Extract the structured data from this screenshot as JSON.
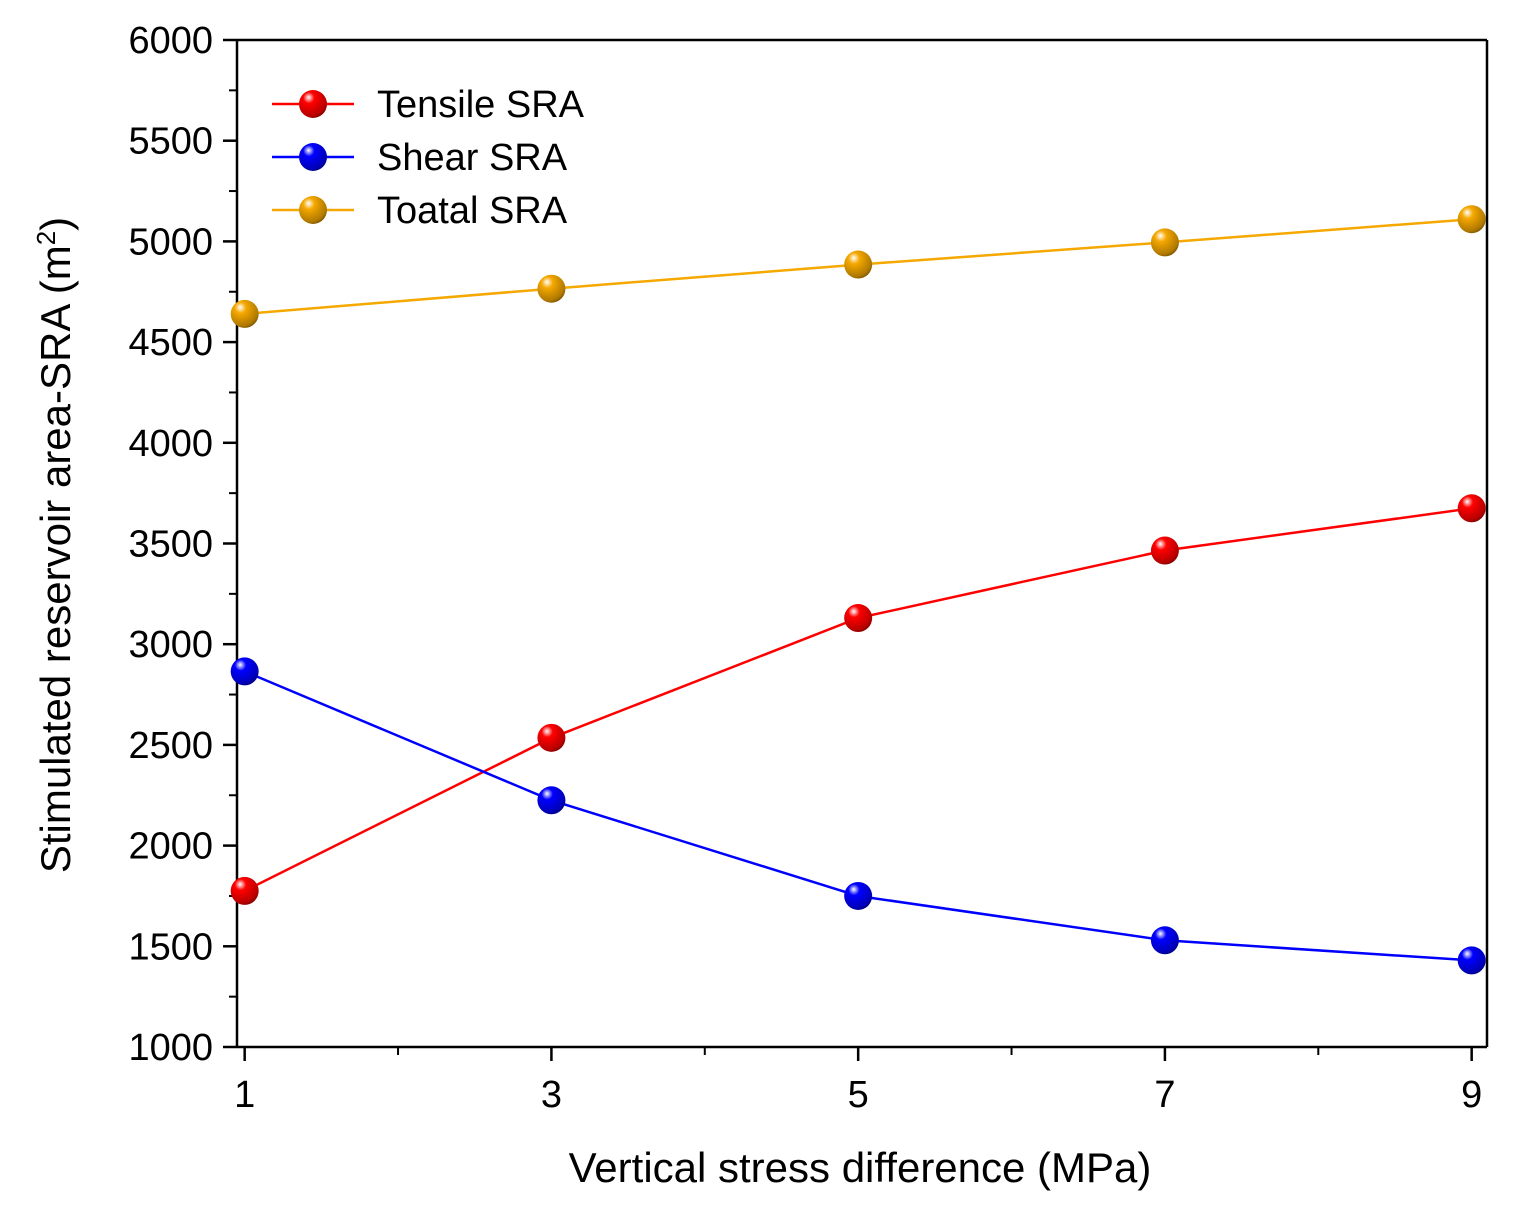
{
  "chart_data": {
    "type": "line",
    "title": "",
    "xlabel": "Vertical stress difference (MPa)",
    "ylabel_main": "Stimulated reservoir area-SRA (m",
    "ylabel_sup": "2",
    "ylabel_close": ")",
    "xlim": [
      0.95,
      9.1
    ],
    "ylim": [
      1000,
      6000
    ],
    "x_ticks": [
      1,
      3,
      5,
      7,
      9
    ],
    "x_tick_labels": [
      "1",
      "3",
      "5",
      "7",
      "9"
    ],
    "y_ticks": [
      1000,
      1500,
      2000,
      2500,
      3000,
      3500,
      4000,
      4500,
      5000,
      5500,
      6000
    ],
    "y_tick_labels": [
      "1000",
      "1500",
      "2000",
      "2500",
      "3000",
      "3500",
      "4000",
      "4500",
      "5000",
      "5500",
      "6000"
    ],
    "x_minor_ticks": [
      2,
      4,
      6,
      8
    ],
    "y_minor_ticks": [
      1250,
      1750,
      2250,
      2750,
      3250,
      3750,
      4250,
      4750,
      5250,
      5750
    ],
    "grid": false,
    "legend_position": "top-left",
    "x": [
      1,
      3,
      5,
      7,
      9
    ],
    "series": [
      {
        "name": "Tensile SRA",
        "color": "#ff0000",
        "values": [
          1775,
          2535,
          3130,
          3465,
          3675
        ]
      },
      {
        "name": "Shear SRA",
        "color": "#0000ff",
        "values": [
          2865,
          2225,
          1750,
          1530,
          1430
        ]
      },
      {
        "name": "Toatal SRA",
        "color": "#f5a800",
        "values": [
          4640,
          4765,
          4885,
          4995,
          5110
        ]
      }
    ]
  }
}
